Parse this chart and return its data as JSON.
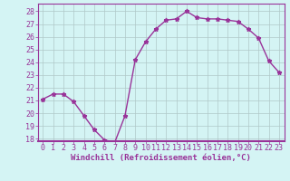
{
  "x": [
    0,
    1,
    2,
    3,
    4,
    5,
    6,
    7,
    8,
    9,
    10,
    11,
    12,
    13,
    14,
    15,
    16,
    17,
    18,
    19,
    20,
    21,
    22,
    23
  ],
  "y": [
    21.1,
    21.5,
    21.5,
    20.9,
    19.8,
    18.7,
    17.9,
    17.7,
    19.8,
    24.2,
    25.6,
    26.6,
    27.3,
    27.4,
    28.0,
    27.5,
    27.4,
    27.4,
    27.3,
    27.2,
    26.6,
    25.9,
    24.1,
    23.2
  ],
  "line_color": "#993399",
  "marker": "*",
  "marker_color": "#993399",
  "marker_size": 3.5,
  "xlabel": "Windchill (Refroidissement éolien,°C)",
  "xlim": [
    -0.5,
    23.5
  ],
  "ylim": [
    17.8,
    28.6
  ],
  "yticks": [
    18,
    19,
    20,
    21,
    22,
    23,
    24,
    25,
    26,
    27,
    28
  ],
  "xticks": [
    0,
    1,
    2,
    3,
    4,
    5,
    6,
    7,
    8,
    9,
    10,
    11,
    12,
    13,
    14,
    15,
    16,
    17,
    18,
    19,
    20,
    21,
    22,
    23
  ],
  "background_color": "#d4f4f4",
  "grid_color": "#b0c8c8",
  "xlabel_fontsize": 6.5,
  "tick_fontsize": 6.0,
  "line_width": 1.0
}
